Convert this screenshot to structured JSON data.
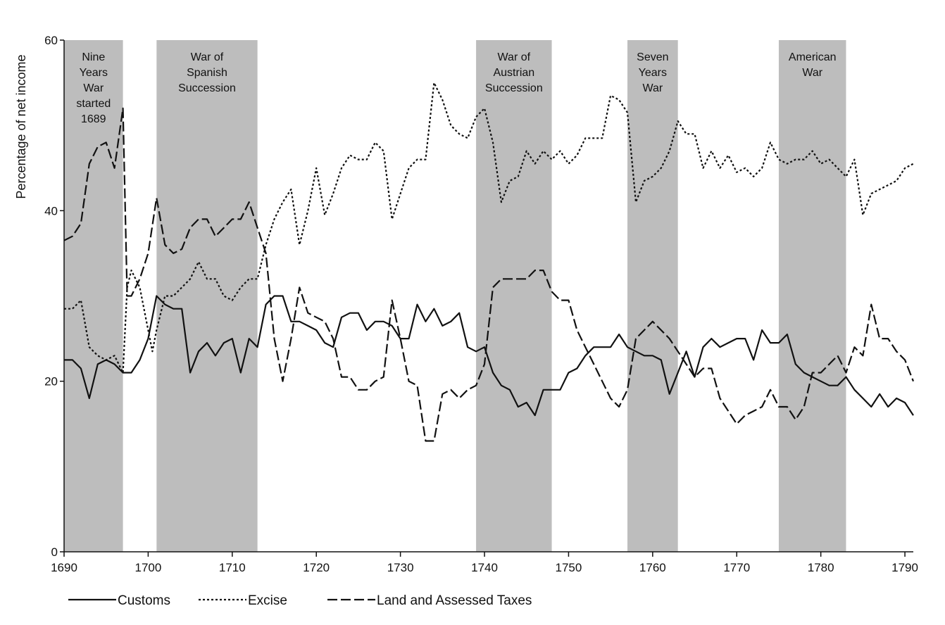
{
  "chart_data": {
    "type": "line",
    "title": "",
    "xlabel": "",
    "ylabel": "Percentage of net income",
    "xlim": [
      1690,
      1791
    ],
    "ylim": [
      0,
      60
    ],
    "x_ticks": [
      "1690",
      "1700",
      "1710",
      "1720",
      "1730",
      "1740",
      "1750",
      "1760",
      "1770",
      "1780",
      "1790"
    ],
    "y_ticks": [
      "0",
      "20",
      "40",
      "60"
    ],
    "grid": false,
    "legend_position": "bottom-left",
    "wars": [
      {
        "label_lines": [
          "Nine",
          "Years",
          "War",
          "started",
          "1689"
        ],
        "start": 1690,
        "end": 1697
      },
      {
        "label_lines": [
          "War of",
          "Spanish",
          "Succession"
        ],
        "start": 1701,
        "end": 1713
      },
      {
        "label_lines": [
          "War of",
          "Austrian",
          "Succession"
        ],
        "start": 1739,
        "end": 1748
      },
      {
        "label_lines": [
          "Seven",
          "Years",
          "War"
        ],
        "start": 1757,
        "end": 1763
      },
      {
        "label_lines": [
          "American",
          "War"
        ],
        "start": 1775,
        "end": 1783
      }
    ],
    "series": [
      {
        "name": "Customs",
        "dash": "solid",
        "points": [
          [
            1690,
            22.5
          ],
          [
            1691,
            22.5
          ],
          [
            1692,
            21.5
          ],
          [
            1693,
            18
          ],
          [
            1694,
            22
          ],
          [
            1695,
            22.5
          ],
          [
            1696,
            22
          ],
          [
            1697,
            21
          ],
          [
            1698,
            21
          ],
          [
            1699,
            22.5
          ],
          [
            1700,
            25
          ],
          [
            1701,
            30
          ],
          [
            1702,
            29
          ],
          [
            1703,
            28.5
          ],
          [
            1704,
            28.5
          ],
          [
            1705,
            21
          ],
          [
            1706,
            23.5
          ],
          [
            1707,
            24.5
          ],
          [
            1708,
            23
          ],
          [
            1709,
            24.5
          ],
          [
            1710,
            25
          ],
          [
            1711,
            21
          ],
          [
            1712,
            25
          ],
          [
            1713,
            24
          ],
          [
            1714,
            29
          ],
          [
            1715,
            30
          ],
          [
            1716,
            30
          ],
          [
            1717,
            27
          ],
          [
            1718,
            27
          ],
          [
            1719,
            26.5
          ],
          [
            1720,
            26
          ],
          [
            1721,
            24.5
          ],
          [
            1722,
            24
          ],
          [
            1723,
            27.5
          ],
          [
            1724,
            28
          ],
          [
            1725,
            28
          ],
          [
            1726,
            26
          ],
          [
            1727,
            27
          ],
          [
            1728,
            27
          ],
          [
            1729,
            26.5
          ],
          [
            1730,
            25
          ],
          [
            1731,
            25
          ],
          [
            1732,
            29
          ],
          [
            1733,
            27
          ],
          [
            1734,
            28.5
          ],
          [
            1735,
            26.5
          ],
          [
            1736,
            27
          ],
          [
            1737,
            28
          ],
          [
            1738,
            24
          ],
          [
            1739,
            23.5
          ],
          [
            1740,
            24
          ],
          [
            1741,
            21
          ],
          [
            1742,
            19.5
          ],
          [
            1743,
            19
          ],
          [
            1744,
            17
          ],
          [
            1745,
            17.5
          ],
          [
            1746,
            16
          ],
          [
            1747,
            19
          ],
          [
            1748,
            19
          ],
          [
            1749,
            19
          ],
          [
            1750,
            21
          ],
          [
            1751,
            21.5
          ],
          [
            1752,
            23
          ],
          [
            1753,
            24
          ],
          [
            1754,
            24
          ],
          [
            1755,
            24
          ],
          [
            1756,
            25.5
          ],
          [
            1757,
            24
          ],
          [
            1758,
            23.5
          ],
          [
            1759,
            23
          ],
          [
            1760,
            23
          ],
          [
            1761,
            22.5
          ],
          [
            1762,
            18.5
          ],
          [
            1763,
            21
          ],
          [
            1764,
            23.5
          ],
          [
            1765,
            20.5
          ],
          [
            1766,
            24
          ],
          [
            1767,
            25
          ],
          [
            1768,
            24
          ],
          [
            1769,
            24.5
          ],
          [
            1770,
            25
          ],
          [
            1771,
            25
          ],
          [
            1772,
            22.5
          ],
          [
            1773,
            26
          ],
          [
            1774,
            24.5
          ],
          [
            1775,
            24.5
          ],
          [
            1776,
            25.5
          ],
          [
            1777,
            22
          ],
          [
            1778,
            21
          ],
          [
            1779,
            20.5
          ],
          [
            1780,
            20
          ],
          [
            1781,
            19.5
          ],
          [
            1782,
            19.5
          ],
          [
            1783,
            20.5
          ],
          [
            1784,
            19
          ],
          [
            1785,
            18
          ],
          [
            1786,
            17
          ],
          [
            1787,
            18.5
          ],
          [
            1788,
            17
          ],
          [
            1789,
            18
          ],
          [
            1790,
            17.5
          ],
          [
            1791,
            16
          ]
        ]
      },
      {
        "name": "Excise",
        "dash": "dotted",
        "points": [
          [
            1690,
            28.5
          ],
          [
            1691,
            28.5
          ],
          [
            1692,
            29.5
          ],
          [
            1693,
            24
          ],
          [
            1694,
            23
          ],
          [
            1695,
            22.5
          ],
          [
            1696,
            23
          ],
          [
            1697,
            21
          ],
          [
            1697.5,
            31
          ],
          [
            1698,
            33
          ],
          [
            1699,
            31
          ],
          [
            1700,
            26
          ],
          [
            1700.5,
            23.5
          ],
          [
            1701,
            26
          ],
          [
            1702,
            30
          ],
          [
            1703,
            30
          ],
          [
            1704,
            31
          ],
          [
            1705,
            32
          ],
          [
            1706,
            34
          ],
          [
            1707,
            32
          ],
          [
            1708,
            32
          ],
          [
            1709,
            30
          ],
          [
            1710,
            29.5
          ],
          [
            1711,
            31
          ],
          [
            1712,
            32
          ],
          [
            1713,
            32
          ],
          [
            1714,
            36
          ],
          [
            1715,
            39
          ],
          [
            1716,
            41
          ],
          [
            1717,
            42.5
          ],
          [
            1718,
            36
          ],
          [
            1719,
            40
          ],
          [
            1720,
            45
          ],
          [
            1721,
            39.5
          ],
          [
            1722,
            42
          ],
          [
            1723,
            45
          ],
          [
            1724,
            46.5
          ],
          [
            1725,
            46
          ],
          [
            1726,
            46
          ],
          [
            1727,
            48
          ],
          [
            1728,
            47
          ],
          [
            1729,
            39
          ],
          [
            1730,
            42
          ],
          [
            1731,
            45
          ],
          [
            1732,
            46
          ],
          [
            1733,
            46
          ],
          [
            1734,
            55
          ],
          [
            1735,
            53
          ],
          [
            1736,
            50
          ],
          [
            1737,
            49
          ],
          [
            1738,
            48.5
          ],
          [
            1739,
            51
          ],
          [
            1740,
            52
          ],
          [
            1741,
            48
          ],
          [
            1742,
            41
          ],
          [
            1743,
            43.5
          ],
          [
            1744,
            44
          ],
          [
            1745,
            47
          ],
          [
            1746,
            45.5
          ],
          [
            1747,
            47
          ],
          [
            1748,
            46
          ],
          [
            1749,
            47
          ],
          [
            1750,
            45.5
          ],
          [
            1751,
            46.5
          ],
          [
            1752,
            48.5
          ],
          [
            1753,
            48.5
          ],
          [
            1754,
            48.5
          ],
          [
            1755,
            53.5
          ],
          [
            1756,
            53
          ],
          [
            1757,
            51.5
          ],
          [
            1758,
            41
          ],
          [
            1759,
            43.5
          ],
          [
            1760,
            44
          ],
          [
            1761,
            45
          ],
          [
            1762,
            47
          ],
          [
            1763,
            50.5
          ],
          [
            1764,
            49
          ],
          [
            1765,
            49
          ],
          [
            1766,
            45
          ],
          [
            1767,
            47
          ],
          [
            1768,
            45
          ],
          [
            1769,
            46.5
          ],
          [
            1770,
            44.5
          ],
          [
            1771,
            45
          ],
          [
            1772,
            44
          ],
          [
            1773,
            45
          ],
          [
            1774,
            48
          ],
          [
            1775,
            46
          ],
          [
            1776,
            45.5
          ],
          [
            1777,
            46
          ],
          [
            1778,
            46
          ],
          [
            1779,
            47
          ],
          [
            1780,
            45.5
          ],
          [
            1781,
            46
          ],
          [
            1782,
            45
          ],
          [
            1783,
            44
          ],
          [
            1784,
            46
          ],
          [
            1785,
            39.5
          ],
          [
            1786,
            42
          ],
          [
            1787,
            42.5
          ],
          [
            1788,
            43
          ],
          [
            1789,
            43.5
          ],
          [
            1790,
            45
          ],
          [
            1791,
            45.5
          ]
        ]
      },
      {
        "name": "Land and Assessed Taxes",
        "dash": "dashed",
        "points": [
          [
            1690,
            36.5
          ],
          [
            1691,
            37
          ],
          [
            1692,
            38.5
          ],
          [
            1693,
            45.5
          ],
          [
            1694,
            47.5
          ],
          [
            1695,
            48
          ],
          [
            1696,
            45
          ],
          [
            1697,
            52
          ],
          [
            1697.5,
            30
          ],
          [
            1698,
            30
          ],
          [
            1699,
            32
          ],
          [
            1700,
            35
          ],
          [
            1701,
            41.5
          ],
          [
            1702,
            36
          ],
          [
            1703,
            35
          ],
          [
            1704,
            35.5
          ],
          [
            1705,
            38
          ],
          [
            1706,
            39
          ],
          [
            1707,
            39
          ],
          [
            1708,
            37
          ],
          [
            1709,
            38
          ],
          [
            1710,
            39
          ],
          [
            1711,
            39
          ],
          [
            1712,
            41
          ],
          [
            1713,
            38
          ],
          [
            1714,
            35
          ],
          [
            1715,
            25
          ],
          [
            1716,
            20
          ],
          [
            1717,
            25
          ],
          [
            1718,
            31
          ],
          [
            1719,
            28
          ],
          [
            1720,
            27.5
          ],
          [
            1721,
            27
          ],
          [
            1722,
            25
          ],
          [
            1723,
            20.5
          ],
          [
            1724,
            20.5
          ],
          [
            1725,
            19
          ],
          [
            1726,
            19
          ],
          [
            1727,
            20
          ],
          [
            1728,
            20.5
          ],
          [
            1729,
            29.5
          ],
          [
            1730,
            25
          ],
          [
            1731,
            20
          ],
          [
            1732,
            19.5
          ],
          [
            1733,
            13
          ],
          [
            1734,
            13
          ],
          [
            1735,
            18.5
          ],
          [
            1736,
            19
          ],
          [
            1737,
            18
          ],
          [
            1738,
            19
          ],
          [
            1739,
            19.5
          ],
          [
            1740,
            22
          ],
          [
            1741,
            31
          ],
          [
            1742,
            32
          ],
          [
            1743,
            32
          ],
          [
            1744,
            32
          ],
          [
            1745,
            32
          ],
          [
            1746,
            33
          ],
          [
            1747,
            33
          ],
          [
            1748,
            30.5
          ],
          [
            1749,
            29.5
          ],
          [
            1750,
            29.5
          ],
          [
            1751,
            26
          ],
          [
            1752,
            24
          ],
          [
            1753,
            22
          ],
          [
            1754,
            20
          ],
          [
            1755,
            18
          ],
          [
            1756,
            17
          ],
          [
            1757,
            19
          ],
          [
            1758,
            25
          ],
          [
            1759,
            26
          ],
          [
            1760,
            27
          ],
          [
            1761,
            26
          ],
          [
            1762,
            25
          ],
          [
            1763,
            23.5
          ],
          [
            1764,
            22
          ],
          [
            1765,
            20.5
          ],
          [
            1766,
            21.5
          ],
          [
            1767,
            21.5
          ],
          [
            1768,
            18
          ],
          [
            1769,
            16.5
          ],
          [
            1770,
            15
          ],
          [
            1771,
            16
          ],
          [
            1772,
            16.5
          ],
          [
            1773,
            17
          ],
          [
            1774,
            19
          ],
          [
            1775,
            17
          ],
          [
            1776,
            17
          ],
          [
            1777,
            15.5
          ],
          [
            1778,
            17
          ],
          [
            1779,
            21
          ],
          [
            1780,
            21
          ],
          [
            1781,
            22
          ],
          [
            1782,
            23
          ],
          [
            1783,
            21
          ],
          [
            1784,
            24
          ],
          [
            1785,
            23
          ],
          [
            1786,
            29
          ],
          [
            1787,
            25
          ],
          [
            1788,
            25
          ],
          [
            1789,
            23.5
          ],
          [
            1790,
            22.5
          ],
          [
            1791,
            20
          ]
        ]
      }
    ]
  }
}
